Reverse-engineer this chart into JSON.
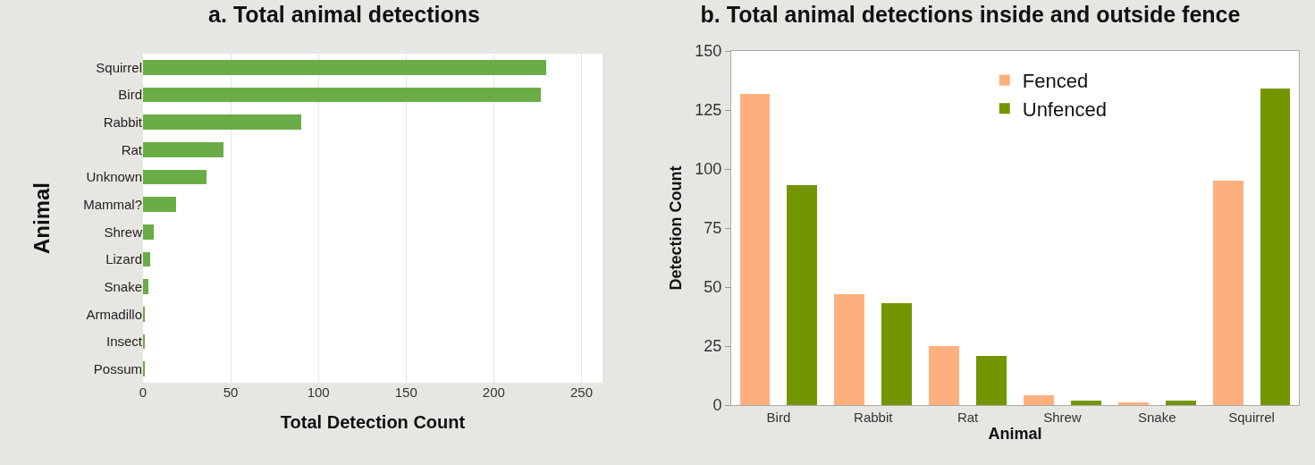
{
  "chart_data": [
    {
      "type": "bar",
      "orientation": "horizontal",
      "title": "a. Total animal detections",
      "xlabel": "Total Detection Count",
      "ylabel": "Animal",
      "categories": [
        "Squirrel",
        "Bird",
        "Rabbit",
        "Rat",
        "Unknown",
        "Mammal?",
        "Shrew",
        "Lizard",
        "Snake",
        "Armadillo",
        "Insect",
        "Possum"
      ],
      "values": [
        230,
        227,
        90,
        46,
        36,
        19,
        6,
        4,
        3,
        1,
        1,
        1
      ],
      "color": "#6aad47",
      "xlim": [
        0,
        262
      ],
      "xticks": [
        0,
        50,
        100,
        150,
        200,
        250
      ],
      "grid": "x",
      "legend": false
    },
    {
      "type": "bar",
      "title": "b. Total animal detections inside and outside fence",
      "xlabel": "Animal",
      "ylabel": "Detection Count",
      "categories": [
        "Bird",
        "Rabbit",
        "Rat",
        "Shrew",
        "Snake",
        "Squirrel"
      ],
      "series": [
        {
          "name": "Fenced",
          "color": "#fdb07d",
          "values": [
            132,
            47,
            25,
            4,
            1,
            95
          ]
        },
        {
          "name": "Unfenced",
          "color": "#739600",
          "values": [
            93,
            43,
            21,
            2,
            2,
            134
          ]
        }
      ],
      "ylim": [
        0,
        150
      ],
      "yticks": [
        0,
        25,
        50,
        75,
        100,
        125,
        150
      ],
      "grid": false,
      "legend": "top right"
    }
  ]
}
